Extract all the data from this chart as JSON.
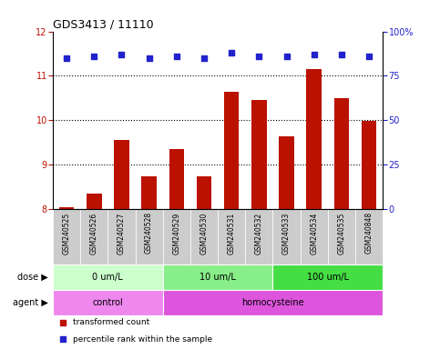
{
  "title": "GDS3413 / 11110",
  "samples": [
    "GSM240525",
    "GSM240526",
    "GSM240527",
    "GSM240528",
    "GSM240529",
    "GSM240530",
    "GSM240531",
    "GSM240532",
    "GSM240533",
    "GSM240534",
    "GSM240535",
    "GSM240848"
  ],
  "bar_values": [
    8.05,
    8.35,
    9.55,
    8.75,
    9.35,
    8.75,
    10.65,
    10.45,
    9.65,
    11.15,
    10.5,
    9.98
  ],
  "percentile_values": [
    85,
    86,
    87,
    85,
    86,
    85,
    88,
    86,
    86,
    87,
    87,
    86
  ],
  "bar_color": "#bb1100",
  "dot_color": "#2222cc",
  "ylim_left": [
    8,
    12
  ],
  "ylim_right": [
    0,
    100
  ],
  "yticks_left": [
    8,
    9,
    10,
    11,
    12
  ],
  "yticks_right": [
    0,
    25,
    50,
    75,
    100
  ],
  "dose_groups": [
    {
      "label": "0 um/L",
      "start": 0,
      "end": 4,
      "color": "#ccffcc"
    },
    {
      "label": "10 um/L",
      "start": 4,
      "end": 8,
      "color": "#88ee88"
    },
    {
      "label": "100 um/L",
      "start": 8,
      "end": 12,
      "color": "#44dd44"
    }
  ],
  "agent_groups": [
    {
      "label": "control",
      "start": 0,
      "end": 4,
      "color": "#ee88ee"
    },
    {
      "label": "homocysteine",
      "start": 4,
      "end": 12,
      "color": "#dd55dd"
    }
  ],
  "legend_items": [
    {
      "label": "transformed count",
      "color": "#bb1100",
      "marker": "s"
    },
    {
      "label": "percentile rank within the sample",
      "color": "#2222cc",
      "marker": "s"
    }
  ],
  "background_color": "#ffffff",
  "sample_bg_color": "#cccccc",
  "left_label_color": "#444444"
}
